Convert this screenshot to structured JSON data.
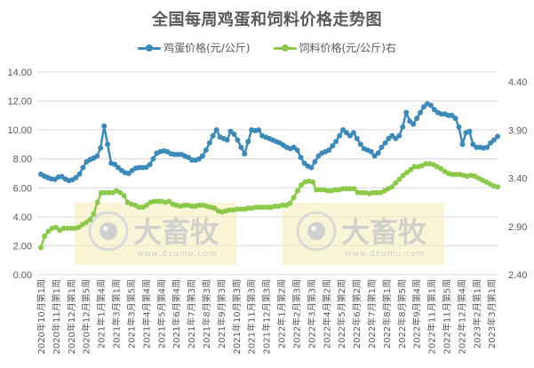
{
  "chart_data": {
    "type": "line",
    "title": "全国每周鸡蛋和饲料价格走势图",
    "xlabel": "",
    "ylabel": "",
    "grid": true,
    "legend_position": "top",
    "y_left": {
      "min": 0,
      "max": 14,
      "ticks": [
        "0.00",
        "2.00",
        "4.00",
        "6.00",
        "8.00",
        "10.00",
        "12.00",
        "14.00"
      ]
    },
    "y_right": {
      "min": 2.4,
      "max": 4.5,
      "ticks": [
        "2.40",
        "2.90",
        "3.40",
        "3.90",
        "4.40"
      ]
    },
    "x_tick_labels": [
      "2020年10月第1周",
      "2020年11月第1周",
      "2020年12月第1周",
      "2020年12月第5周",
      "2021年1月第4周",
      "2021年3月第1周",
      "2021年3月第5周",
      "2021年4月第4周",
      "2021年5月第4周",
      "2021年6月第4周",
      "2021年7月第3周",
      "2021年8月第3周",
      "2021年9月第3周",
      "2021年10月第3周",
      "2021年11月第3周",
      "2021年12月第3周",
      "2022年1月第2周",
      "2022年2月第3周",
      "2022年3月第3周",
      "2022年4月第2周",
      "2022年5月第2周",
      "2022年6月第2周",
      "2022年7月第1周",
      "2022年8月第1周",
      "2022年8月第5周",
      "2022年9月第4周",
      "2022年11月第1周",
      "2022年11月第5周",
      "2022年12月第4周",
      "2023年2月第1周",
      "2023年3月第1周"
    ],
    "series": [
      {
        "name": "鸡蛋价格(元/公斤)",
        "axis": "left",
        "color": "#3d8ab8",
        "values": [
          6.94,
          6.8,
          6.7,
          6.62,
          6.58,
          6.75,
          6.78,
          6.6,
          6.5,
          6.55,
          6.7,
          6.95,
          7.4,
          7.8,
          7.95,
          8.05,
          8.2,
          8.75,
          10.26,
          9.0,
          7.7,
          7.62,
          7.4,
          7.2,
          7.05,
          7.0,
          7.2,
          7.35,
          7.4,
          7.4,
          7.42,
          7.6,
          8.0,
          8.4,
          8.5,
          8.55,
          8.5,
          8.35,
          8.3,
          8.3,
          8.3,
          8.2,
          8.1,
          7.92,
          7.9,
          8.0,
          8.2,
          8.6,
          9.1,
          9.6,
          10.0,
          9.5,
          9.4,
          9.3,
          9.9,
          9.7,
          9.3,
          8.8,
          8.35,
          9.2,
          10.0,
          9.95,
          10.0,
          9.6,
          9.5,
          9.4,
          9.3,
          9.2,
          9.1,
          8.95,
          8.8,
          8.7,
          8.8,
          8.6,
          8.1,
          7.7,
          7.5,
          7.4,
          7.8,
          8.2,
          8.4,
          8.5,
          8.6,
          8.9,
          9.2,
          9.6,
          10.0,
          9.8,
          9.6,
          9.8,
          9.4,
          9.0,
          8.7,
          8.6,
          8.5,
          8.2,
          8.4,
          8.8,
          9.1,
          9.4,
          9.6,
          9.4,
          9.6,
          10.2,
          11.2,
          10.6,
          10.4,
          10.8,
          11.2,
          11.6,
          11.8,
          11.7,
          11.4,
          11.2,
          11.1,
          11.1,
          11.0,
          11.0,
          10.8,
          10.2,
          9.0,
          9.8,
          9.9,
          9.0,
          8.8,
          8.8,
          8.75,
          8.8,
          9.1,
          9.3,
          9.55
        ]
      },
      {
        "name": "饲料价格(元/公斤)右",
        "axis": "right",
        "color": "#8cc94a",
        "values": [
          2.68,
          2.8,
          2.85,
          2.88,
          2.89,
          2.86,
          2.88,
          2.88,
          2.88,
          2.88,
          2.89,
          2.92,
          2.94,
          2.97,
          3.03,
          3.15,
          3.25,
          3.25,
          3.25,
          3.25,
          3.27,
          3.25,
          3.22,
          3.15,
          3.13,
          3.12,
          3.1,
          3.1,
          3.12,
          3.15,
          3.16,
          3.16,
          3.16,
          3.15,
          3.16,
          3.13,
          3.12,
          3.11,
          3.12,
          3.12,
          3.11,
          3.11,
          3.12,
          3.12,
          3.11,
          3.1,
          3.09,
          3.06,
          3.05,
          3.06,
          3.07,
          3.07,
          3.08,
          3.08,
          3.08,
          3.09,
          3.09,
          3.1,
          3.1,
          3.1,
          3.1,
          3.1,
          3.11,
          3.11,
          3.12,
          3.12,
          3.14,
          3.2,
          3.27,
          3.33,
          3.36,
          3.37,
          3.36,
          3.28,
          3.28,
          3.28,
          3.27,
          3.27,
          3.28,
          3.28,
          3.29,
          3.29,
          3.29,
          3.29,
          3.25,
          3.25,
          3.25,
          3.24,
          3.25,
          3.25,
          3.25,
          3.27,
          3.29,
          3.31,
          3.35,
          3.39,
          3.43,
          3.46,
          3.49,
          3.52,
          3.52,
          3.53,
          3.55,
          3.55,
          3.54,
          3.52,
          3.5,
          3.47,
          3.45,
          3.44,
          3.44,
          3.44,
          3.43,
          3.42,
          3.43,
          3.42,
          3.4,
          3.38,
          3.36,
          3.34,
          3.32,
          3.31
        ]
      }
    ]
  },
  "page": {
    "title": "全国每周鸡蛋和饲料价格走势图",
    "legend": [
      {
        "label": "鸡蛋价格(元/公斤)",
        "color": "#3d8ab8"
      },
      {
        "label": "饲料价格(元/公斤)右",
        "color": "#8cc94a"
      }
    ],
    "watermarks": [
      {
        "brand": "大畜牧",
        "url": "www.dxumu.com"
      },
      {
        "brand": "大畜牧",
        "url": "www.dxumu.com"
      }
    ]
  }
}
